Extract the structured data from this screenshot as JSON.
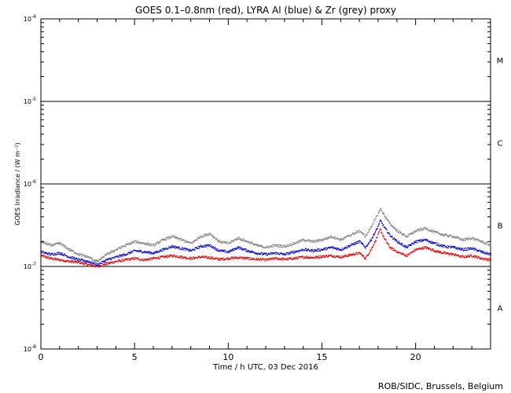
{
  "chart_data": {
    "type": "scatter",
    "title": "GOES 0.1–0.8nm (red), LYRA Al (blue) & Zr (grey) proxy",
    "xlabel": "Time / h UTC, 03 Dec 2016",
    "ylabel": "GOES Irradiance / (W m⁻²)",
    "credit": "ROB/SIDC, Brussels, Belgium",
    "xlim": [
      0,
      24
    ],
    "ylim": [
      1e-08,
      0.0001
    ],
    "yscale": "log",
    "grid": false,
    "xticks": [
      0,
      5,
      10,
      15,
      20
    ],
    "xtick_labels": [
      "0",
      "5",
      "10",
      "15",
      "20"
    ],
    "yticks": [
      {
        "value": 1e-08,
        "base": "10",
        "exp": "-8"
      },
      {
        "value": 1e-07,
        "base": "10",
        "exp": "-7"
      },
      {
        "value": 1e-06,
        "base": "10",
        "exp": "-6"
      },
      {
        "value": 1e-05,
        "base": "10",
        "exp": "-5"
      },
      {
        "value": 0.0001,
        "base": "10",
        "exp": "-4"
      }
    ],
    "class_lines": [
      1e-07,
      1e-06,
      1e-05
    ],
    "flare_classes": [
      {
        "label": "A",
        "value": 3.16e-08
      },
      {
        "label": "B",
        "value": 3.16e-07
      },
      {
        "label": "C",
        "value": 3.16e-06
      },
      {
        "label": "M",
        "value": 3.16e-05
      }
    ],
    "series": [
      {
        "color": "#e00000",
        "x": [
          0.0,
          0.5,
          1.0,
          1.5,
          2.0,
          2.5,
          3.0,
          3.5,
          4.0,
          4.5,
          5.0,
          5.5,
          6.0,
          6.5,
          7.0,
          7.5,
          8.0,
          8.5,
          9.0,
          9.5,
          10.0,
          10.5,
          11.0,
          11.5,
          12.0,
          12.5,
          13.0,
          13.5,
          14.0,
          14.5,
          15.0,
          15.5,
          16.0,
          16.5,
          17.0,
          17.3,
          17.6,
          17.9,
          18.1,
          18.3,
          18.6,
          19.0,
          19.5,
          20.0,
          20.5,
          21.0,
          21.5,
          22.0,
          22.5,
          23.0,
          23.5,
          24.0
        ],
        "y": [
          1.35e-07,
          1.25e-07,
          1.2e-07,
          1.15e-07,
          1.12e-07,
          1.05e-07,
          1e-07,
          1.08e-07,
          1.15e-07,
          1.2e-07,
          1.25e-07,
          1.2e-07,
          1.25e-07,
          1.3e-07,
          1.35e-07,
          1.3e-07,
          1.25e-07,
          1.3e-07,
          1.28e-07,
          1.22e-07,
          1.25e-07,
          1.28e-07,
          1.25e-07,
          1.22e-07,
          1.2e-07,
          1.25e-07,
          1.22e-07,
          1.25e-07,
          1.3e-07,
          1.28e-07,
          1.32e-07,
          1.35e-07,
          1.3e-07,
          1.38e-07,
          1.45e-07,
          1.25e-07,
          1.6e-07,
          2.2e-07,
          2.8e-07,
          2.2e-07,
          1.7e-07,
          1.5e-07,
          1.35e-07,
          1.6e-07,
          1.7e-07,
          1.55e-07,
          1.45e-07,
          1.4e-07,
          1.3e-07,
          1.35e-07,
          1.25e-07,
          1.2e-07
        ]
      },
      {
        "color": "#0000d0",
        "x": [
          0.0,
          0.5,
          1.0,
          1.5,
          2.0,
          2.5,
          3.0,
          3.5,
          4.0,
          4.5,
          5.0,
          5.5,
          6.0,
          6.5,
          7.0,
          7.5,
          8.0,
          8.5,
          9.0,
          9.5,
          10.0,
          10.5,
          11.0,
          11.5,
          12.0,
          12.5,
          13.0,
          13.5,
          14.0,
          14.5,
          15.0,
          15.5,
          16.0,
          16.5,
          17.0,
          17.3,
          17.6,
          17.9,
          18.1,
          18.3,
          18.6,
          19.0,
          19.5,
          20.0,
          20.5,
          21.0,
          21.5,
          22.0,
          22.5,
          23.0,
          23.5,
          24.0
        ],
        "y": [
          1.5e-07,
          1.4e-07,
          1.45e-07,
          1.3e-07,
          1.2e-07,
          1.15e-07,
          1.05e-07,
          1.2e-07,
          1.3e-07,
          1.4e-07,
          1.55e-07,
          1.5e-07,
          1.45e-07,
          1.6e-07,
          1.75e-07,
          1.65e-07,
          1.55e-07,
          1.75e-07,
          1.8e-07,
          1.55e-07,
          1.5e-07,
          1.7e-07,
          1.55e-07,
          1.45e-07,
          1.4e-07,
          1.45e-07,
          1.4e-07,
          1.5e-07,
          1.6e-07,
          1.55e-07,
          1.6e-07,
          1.7e-07,
          1.6e-07,
          1.8e-07,
          2e-07,
          1.7e-07,
          2.1e-07,
          2.8e-07,
          3.6e-07,
          3e-07,
          2.4e-07,
          2e-07,
          1.7e-07,
          2e-07,
          2.1e-07,
          1.9e-07,
          1.75e-07,
          1.7e-07,
          1.6e-07,
          1.65e-07,
          1.5e-07,
          1.4e-07
        ]
      },
      {
        "color": "#808080",
        "x": [
          0.0,
          0.5,
          1.0,
          1.5,
          2.0,
          2.5,
          3.0,
          3.5,
          4.0,
          4.5,
          5.0,
          5.5,
          6.0,
          6.5,
          7.0,
          7.5,
          8.0,
          8.5,
          9.0,
          9.5,
          10.0,
          10.5,
          11.0,
          11.5,
          12.0,
          12.5,
          13.0,
          13.5,
          14.0,
          14.5,
          15.0,
          15.5,
          16.0,
          16.5,
          17.0,
          17.3,
          17.6,
          17.9,
          18.1,
          18.3,
          18.6,
          19.0,
          19.5,
          20.0,
          20.5,
          21.0,
          21.5,
          22.0,
          22.5,
          23.0,
          23.5,
          24.0
        ],
        "y": [
          2e-07,
          1.8e-07,
          1.9e-07,
          1.6e-07,
          1.4e-07,
          1.3e-07,
          1.15e-07,
          1.4e-07,
          1.6e-07,
          1.8e-07,
          2e-07,
          1.9e-07,
          1.8e-07,
          2.1e-07,
          2.3e-07,
          2.1e-07,
          1.9e-07,
          2.3e-07,
          2.5e-07,
          2e-07,
          1.9e-07,
          2.2e-07,
          2e-07,
          1.8e-07,
          1.7e-07,
          1.8e-07,
          1.75e-07,
          1.9e-07,
          2.1e-07,
          2e-07,
          2.1e-07,
          2.3e-07,
          2.1e-07,
          2.4e-07,
          2.7e-07,
          2.3e-07,
          3e-07,
          4e-07,
          5e-07,
          4.2e-07,
          3.3e-07,
          2.7e-07,
          2.3e-07,
          2.7e-07,
          2.9e-07,
          2.6e-07,
          2.4e-07,
          2.3e-07,
          2.1e-07,
          2.2e-07,
          2e-07,
          1.8e-07
        ]
      }
    ]
  }
}
